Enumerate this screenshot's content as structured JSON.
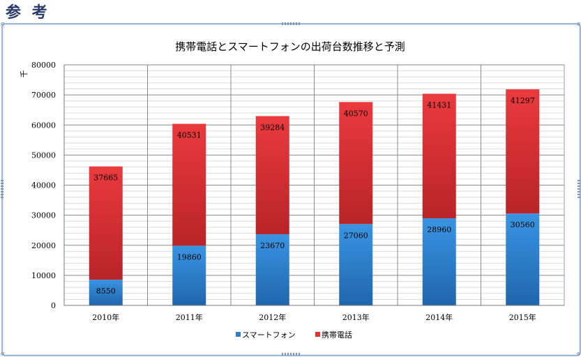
{
  "page": {
    "heading": "参 考"
  },
  "chart_data": {
    "type": "bar",
    "stacked": true,
    "title": "携帯電話とスマートフォンの出荷台数推移と予測",
    "ylabel": "千",
    "xlabel": "",
    "ylim": [
      0,
      80000
    ],
    "ytick_step": 10000,
    "minor_grid_step": 2000,
    "grid": true,
    "legend_position": "bottom",
    "categories": [
      "2010年",
      "2011年",
      "2012年",
      "2013年",
      "2014年",
      "2015年"
    ],
    "series": [
      {
        "name": "スマートフォン",
        "color": "#2e7fcf",
        "values": [
          8550,
          19860,
          23670,
          27060,
          28960,
          30560
        ]
      },
      {
        "name": "携帯電話",
        "color": "#e03535",
        "values": [
          37665,
          40531,
          39284,
          40570,
          41431,
          41297
        ]
      }
    ]
  }
}
